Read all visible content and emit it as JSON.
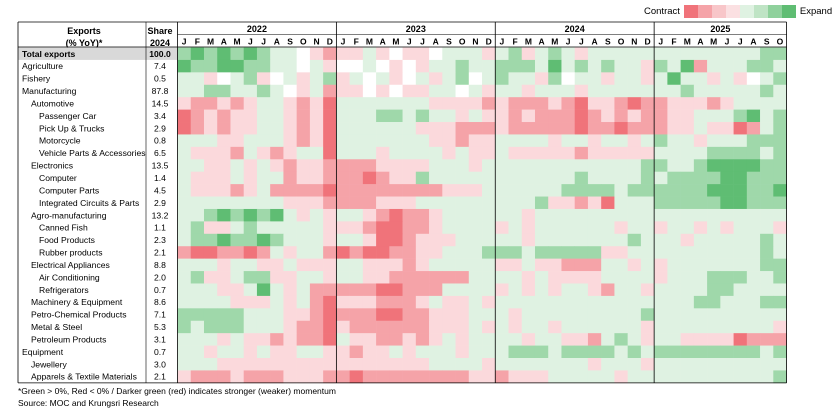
{
  "header": {
    "col1": [
      "Exports",
      "(% YoY)*"
    ],
    "col2": [
      "Share",
      "2024"
    ]
  },
  "legend": {
    "contract_label": "Contract",
    "expand_label": "Expand",
    "swatches": [
      "#f0737a",
      "#f5a3a8",
      "#f8c6c9",
      "#fbe0e2",
      "#dff2e2",
      "#bfe4c5",
      "#8fd19c",
      "#5fbd73"
    ]
  },
  "notes": {
    "footnote": "*Green > 0%, Red < 0% / Darker green (red) indicates stronger (weaker) momentum",
    "source": "Source: MOC and Krungsri Research"
  },
  "colors": {
    "positive": "#5fbd73",
    "negative": "#f0737a",
    "neutral": "#ffffff"
  },
  "chart_data": {
    "type": "heatmap",
    "years": [
      "2022",
      "2023",
      "2024",
      "2025"
    ],
    "months_per_year": [
      12,
      12,
      12,
      10
    ],
    "months": [
      "J",
      "F",
      "M",
      "A",
      "M",
      "J",
      "J",
      "A",
      "S",
      "O",
      "N",
      "D",
      "J",
      "F",
      "M",
      "A",
      "M",
      "J",
      "J",
      "A",
      "S",
      "O",
      "N",
      "D",
      "J",
      "F",
      "M",
      "A",
      "M",
      "J",
      "J",
      "A",
      "S",
      "O",
      "N",
      "D",
      "J",
      "F",
      "M",
      "A",
      "M",
      "J",
      "J",
      "A",
      "S",
      "O"
    ],
    "rows": [
      {
        "label": "Total exports",
        "share": "100.0",
        "level": 0,
        "bold": true
      },
      {
        "label": "Agriculture",
        "share": "7.4",
        "level": 0
      },
      {
        "label": "Fishery",
        "share": "0.5",
        "level": 0
      },
      {
        "label": "Manufacturing",
        "share": "87.8",
        "level": 0
      },
      {
        "label": "Automotive",
        "share": "14.5",
        "level": 1
      },
      {
        "label": "Passenger Car",
        "share": "3.4",
        "level": 2
      },
      {
        "label": "Pick Up & Trucks",
        "share": "2.9",
        "level": 2
      },
      {
        "label": "Motorcycle",
        "share": "0.8",
        "level": 2
      },
      {
        "label": "Vehicle Parts & Accessories",
        "share": "6.5",
        "level": 2
      },
      {
        "label": "Electronics",
        "share": "13.5",
        "level": 1
      },
      {
        "label": "Computer",
        "share": "1.4",
        "level": 2
      },
      {
        "label": "Computer Parts",
        "share": "4.5",
        "level": 2
      },
      {
        "label": "Integrated Circuits & Parts",
        "share": "2.9",
        "level": 2
      },
      {
        "label": "Agro-manufacturing",
        "share": "13.2",
        "level": 1
      },
      {
        "label": "Canned Fish",
        "share": "1.1",
        "level": 2
      },
      {
        "label": "Food Products",
        "share": "2.3",
        "level": 2
      },
      {
        "label": "Rubber products",
        "share": "2.1",
        "level": 2
      },
      {
        "label": "Electrical Appliances",
        "share": "8.8",
        "level": 1
      },
      {
        "label": "Air Conditioning",
        "share": "2.0",
        "level": 2
      },
      {
        "label": "Refrigerators",
        "share": "0.7",
        "level": 2
      },
      {
        "label": "Machinery & Equipment",
        "share": "8.6",
        "level": 1
      },
      {
        "label": "Petro-Chemical Products",
        "share": "7.1",
        "level": 1
      },
      {
        "label": "Metal & Steel",
        "share": "5.3",
        "level": 1
      },
      {
        "label": "Petroleum Products",
        "share": "3.1",
        "level": 1
      },
      {
        "label": "Equipment",
        "share": "0.7",
        "level": 0
      },
      {
        "label": "Jewellery",
        "share": "3.0",
        "level": 1
      },
      {
        "label": "Apparels & Textile Materials",
        "share": "2.1",
        "level": 1
      }
    ],
    "values": [
      [
        2,
        3,
        2,
        3,
        2,
        3,
        2,
        1,
        1,
        0,
        -1,
        -2,
        -1,
        -1,
        1,
        -1,
        0,
        -1,
        -1,
        0,
        1,
        1,
        1,
        -1,
        1,
        2,
        -1,
        1,
        2,
        1,
        -1,
        1,
        1,
        1,
        1,
        1,
        1,
        1,
        1,
        1,
        1,
        1,
        1,
        1,
        2,
        2
      ],
      [
        3,
        2,
        2,
        3,
        3,
        2,
        2,
        1,
        1,
        0,
        1,
        -1,
        0,
        0,
        1,
        0,
        -1,
        0,
        -1,
        1,
        1,
        2,
        1,
        1,
        2,
        2,
        2,
        1,
        3,
        1,
        2,
        1,
        2,
        1,
        1,
        -1,
        2,
        1,
        3,
        -2,
        1,
        1,
        1,
        2,
        2,
        1
      ],
      [
        1,
        1,
        -1,
        0,
        1,
        2,
        -1,
        0,
        1,
        -1,
        1,
        2,
        -1,
        1,
        0,
        1,
        -1,
        0,
        1,
        -1,
        1,
        2,
        0,
        1,
        2,
        1,
        1,
        -1,
        2,
        0,
        1,
        1,
        -1,
        1,
        1,
        -1,
        1,
        3,
        1,
        1,
        -1,
        1,
        -1,
        0,
        1,
        2
      ],
      [
        1,
        1,
        2,
        2,
        1,
        1,
        2,
        1,
        0,
        -1,
        1,
        -2,
        -1,
        -1,
        0,
        -1,
        0,
        -1,
        -1,
        1,
        1,
        0,
        1,
        -1,
        1,
        1,
        -1,
        1,
        1,
        1,
        -1,
        1,
        1,
        1,
        1,
        1,
        1,
        1,
        2,
        1,
        1,
        1,
        1,
        1,
        2,
        1
      ],
      [
        -1,
        -2,
        -2,
        -1,
        -2,
        -1,
        1,
        1,
        -1,
        -2,
        -1,
        -3,
        1,
        1,
        1,
        1,
        1,
        1,
        1,
        -1,
        -1,
        -1,
        -1,
        -2,
        -1,
        -2,
        -2,
        -2,
        -1,
        -2,
        -3,
        -1,
        -1,
        -2,
        -3,
        -2,
        -2,
        -1,
        -1,
        -1,
        -2,
        -1,
        1,
        1,
        1,
        1
      ],
      [
        -3,
        -2,
        -1,
        -2,
        -1,
        -1,
        1,
        1,
        -1,
        -2,
        -1,
        -3,
        1,
        1,
        1,
        2,
        2,
        1,
        2,
        1,
        1,
        -1,
        1,
        -1,
        -1,
        -2,
        -1,
        -2,
        -2,
        -2,
        -3,
        -2,
        -1,
        -2,
        -1,
        -2,
        -2,
        -1,
        -1,
        1,
        1,
        1,
        2,
        3,
        1,
        2
      ],
      [
        -3,
        -2,
        -1,
        -2,
        -1,
        -1,
        1,
        1,
        -1,
        -2,
        -1,
        -3,
        1,
        1,
        1,
        1,
        1,
        1,
        -1,
        -1,
        -1,
        -2,
        -2,
        -2,
        -1,
        -2,
        -2,
        -2,
        -2,
        -2,
        -3,
        -2,
        -2,
        -3,
        -2,
        -2,
        -2,
        -1,
        -1,
        1,
        -1,
        -1,
        -3,
        -2,
        1,
        2
      ],
      [
        1,
        1,
        1,
        -1,
        -1,
        1,
        1,
        1,
        -1,
        -2,
        -1,
        -3,
        1,
        1,
        1,
        1,
        1,
        1,
        1,
        -1,
        -1,
        -2,
        -1,
        -1,
        1,
        1,
        1,
        1,
        -1,
        1,
        1,
        -1,
        1,
        1,
        -1,
        1,
        2,
        1,
        1,
        -1,
        1,
        1,
        1,
        2,
        2,
        2
      ],
      [
        1,
        -1,
        -1,
        -1,
        -2,
        1,
        -1,
        -2,
        -1,
        1,
        1,
        -3,
        1,
        1,
        1,
        -1,
        1,
        1,
        1,
        1,
        -1,
        1,
        -1,
        -1,
        1,
        -1,
        -1,
        -1,
        -1,
        -1,
        -2,
        -1,
        -1,
        -1,
        -1,
        -1,
        1,
        1,
        1,
        1,
        2,
        2,
        2,
        2,
        1,
        2
      ],
      [
        1,
        1,
        -1,
        -1,
        1,
        -1,
        1,
        -1,
        -2,
        -1,
        -1,
        -2,
        -2,
        -2,
        -2,
        -1,
        -1,
        -1,
        -1,
        1,
        1,
        1,
        -1,
        1,
        1,
        1,
        1,
        1,
        1,
        1,
        1,
        1,
        1,
        1,
        1,
        2,
        2,
        1,
        1,
        2,
        3,
        3,
        3,
        3,
        2,
        2
      ],
      [
        1,
        -1,
        -1,
        -1,
        1,
        -1,
        1,
        1,
        -2,
        -1,
        -1,
        -2,
        -2,
        -2,
        -3,
        -2,
        -1,
        -1,
        2,
        1,
        1,
        1,
        1,
        1,
        1,
        1,
        1,
        1,
        1,
        1,
        2,
        1,
        1,
        1,
        1,
        2,
        1,
        2,
        2,
        2,
        2,
        3,
        3,
        2,
        2,
        2
      ],
      [
        1,
        -1,
        -1,
        -1,
        -2,
        -1,
        1,
        -2,
        -2,
        -2,
        -2,
        -3,
        -2,
        -2,
        -2,
        -2,
        -2,
        -2,
        -2,
        -2,
        -1,
        -1,
        -1,
        1,
        1,
        1,
        1,
        1,
        1,
        2,
        2,
        2,
        2,
        1,
        2,
        2,
        2,
        2,
        2,
        2,
        3,
        3,
        3,
        2,
        2,
        3
      ],
      [
        1,
        1,
        1,
        1,
        1,
        1,
        1,
        1,
        -1,
        -1,
        -1,
        -2,
        -2,
        -2,
        -2,
        -1,
        -1,
        -1,
        1,
        1,
        1,
        1,
        1,
        1,
        1,
        1,
        1,
        2,
        -1,
        -1,
        -2,
        -1,
        -3,
        1,
        1,
        1,
        2,
        2,
        2,
        2,
        2,
        3,
        3,
        2,
        2,
        2
      ],
      [
        1,
        1,
        2,
        3,
        2,
        3,
        2,
        3,
        1,
        -1,
        1,
        -1,
        1,
        1,
        -1,
        -2,
        -3,
        -2,
        -2,
        -1,
        1,
        1,
        1,
        1,
        1,
        1,
        -1,
        1,
        1,
        1,
        1,
        1,
        1,
        1,
        1,
        1,
        1,
        1,
        1,
        1,
        1,
        1,
        1,
        1,
        1,
        1
      ],
      [
        1,
        2,
        -1,
        -1,
        1,
        2,
        1,
        1,
        1,
        1,
        1,
        -1,
        -1,
        -1,
        -2,
        -3,
        -3,
        -2,
        -2,
        -1,
        1,
        1,
        1,
        1,
        -1,
        1,
        -1,
        1,
        1,
        1,
        1,
        1,
        1,
        -1,
        1,
        1,
        -1,
        1,
        1,
        -1,
        1,
        -1,
        1,
        1,
        1,
        -1
      ],
      [
        1,
        2,
        2,
        3,
        2,
        2,
        3,
        2,
        1,
        1,
        1,
        -1,
        1,
        1,
        -1,
        -3,
        -3,
        -2,
        -1,
        -1,
        -1,
        1,
        1,
        1,
        1,
        1,
        -1,
        1,
        1,
        1,
        1,
        1,
        1,
        1,
        2,
        1,
        1,
        1,
        -1,
        1,
        1,
        1,
        1,
        1,
        2,
        1
      ],
      [
        -2,
        -3,
        -3,
        -2,
        -2,
        -3,
        -2,
        1,
        -1,
        1,
        1,
        -2,
        -3,
        -2,
        -3,
        -3,
        -2,
        -2,
        -1,
        -1,
        1,
        1,
        1,
        2,
        2,
        2,
        1,
        2,
        2,
        2,
        2,
        2,
        -1,
        -1,
        1,
        1,
        1,
        1,
        1,
        1,
        1,
        1,
        1,
        1,
        2,
        1
      ],
      [
        1,
        1,
        1,
        -1,
        1,
        1,
        -1,
        -1,
        1,
        -1,
        -1,
        -1,
        1,
        1,
        -1,
        -1,
        -1,
        -2,
        -1,
        1,
        1,
        1,
        1,
        1,
        -1,
        -1,
        1,
        -1,
        -1,
        -2,
        -2,
        -2,
        1,
        1,
        -1,
        1,
        -1,
        1,
        1,
        1,
        1,
        1,
        1,
        1,
        2,
        2
      ],
      [
        1,
        2,
        -1,
        -1,
        1,
        2,
        2,
        -1,
        -1,
        1,
        1,
        -1,
        1,
        1,
        -1,
        -1,
        -2,
        -2,
        -2,
        -2,
        -2,
        -2,
        1,
        1,
        1,
        1,
        -1,
        1,
        -1,
        -1,
        -1,
        -1,
        1,
        1,
        1,
        1,
        -1,
        1,
        1,
        1,
        2,
        2,
        2,
        1,
        1,
        2
      ],
      [
        1,
        1,
        1,
        -1,
        -1,
        1,
        3,
        1,
        -1,
        1,
        -2,
        -2,
        -2,
        -2,
        -2,
        -3,
        -3,
        -2,
        -2,
        -2,
        1,
        1,
        1,
        1,
        -1,
        1,
        -1,
        1,
        -1,
        1,
        1,
        -1,
        -2,
        1,
        1,
        -1,
        1,
        1,
        1,
        1,
        2,
        2,
        1,
        1,
        1,
        1
      ],
      [
        1,
        1,
        1,
        1,
        -1,
        -1,
        -1,
        1,
        -1,
        1,
        -2,
        -3,
        -1,
        -1,
        -1,
        -2,
        -2,
        -2,
        -1,
        1,
        -1,
        -1,
        1,
        -1,
        1,
        1,
        1,
        1,
        1,
        1,
        1,
        1,
        1,
        1,
        1,
        1,
        1,
        1,
        1,
        2,
        2,
        1,
        1,
        1,
        2,
        2
      ],
      [
        2,
        2,
        2,
        2,
        2,
        1,
        1,
        1,
        -1,
        -1,
        -2,
        -3,
        -2,
        -2,
        -2,
        -3,
        -3,
        -2,
        -2,
        -1,
        -1,
        -1,
        1,
        1,
        1,
        -1,
        1,
        1,
        1,
        1,
        1,
        1,
        1,
        1,
        1,
        2,
        1,
        1,
        1,
        1,
        1,
        1,
        1,
        1,
        1,
        1
      ],
      [
        2,
        1,
        2,
        2,
        2,
        1,
        1,
        1,
        -1,
        -2,
        -2,
        -3,
        -1,
        -2,
        -2,
        -2,
        -2,
        -2,
        -2,
        -1,
        -1,
        -1,
        1,
        -1,
        1,
        -1,
        1,
        1,
        -1,
        1,
        1,
        1,
        1,
        1,
        1,
        -1,
        1,
        1,
        1,
        1,
        1,
        1,
        1,
        1,
        1,
        -1
      ],
      [
        1,
        1,
        1,
        -1,
        1,
        -1,
        -1,
        -2,
        -1,
        -2,
        -2,
        -3,
        1,
        -1,
        -1,
        -2,
        -2,
        -1,
        -2,
        -1,
        1,
        -1,
        1,
        1,
        1,
        1,
        -1,
        1,
        1,
        -1,
        -1,
        -2,
        1,
        2,
        1,
        -1,
        1,
        1,
        -1,
        -1,
        -1,
        -1,
        -3,
        -2,
        -2,
        -2
      ],
      [
        1,
        1,
        -1,
        1,
        1,
        -1,
        1,
        -1,
        -1,
        1,
        1,
        -1,
        -1,
        -2,
        -1,
        -1,
        1,
        -1,
        1,
        1,
        1,
        -1,
        1,
        1,
        1,
        2,
        2,
        2,
        1,
        2,
        2,
        2,
        2,
        1,
        2,
        1,
        2,
        2,
        2,
        2,
        2,
        2,
        2,
        2,
        1,
        2
      ],
      [
        1,
        1,
        1,
        -1,
        -1,
        -1,
        -1,
        -1,
        -1,
        -1,
        -1,
        -1,
        -1,
        -1,
        -1,
        -1,
        -1,
        -1,
        -1,
        1,
        1,
        1,
        1,
        -1,
        1,
        1,
        1,
        1,
        1,
        1,
        1,
        -1,
        1,
        1,
        1,
        -1,
        1,
        1,
        1,
        1,
        1,
        1,
        1,
        1,
        1,
        1
      ],
      [
        -1,
        -2,
        -2,
        -2,
        -1,
        -2,
        -2,
        -2,
        -1,
        -1,
        -1,
        -2,
        -2,
        -3,
        -2,
        -2,
        -2,
        -2,
        -2,
        -2,
        -2,
        -2,
        -1,
        -1,
        -2,
        -1,
        -1,
        -1,
        1,
        1,
        1,
        1,
        1,
        -1,
        1,
        1,
        1,
        1,
        1,
        1,
        1,
        1,
        1,
        1,
        1,
        2
      ]
    ]
  }
}
